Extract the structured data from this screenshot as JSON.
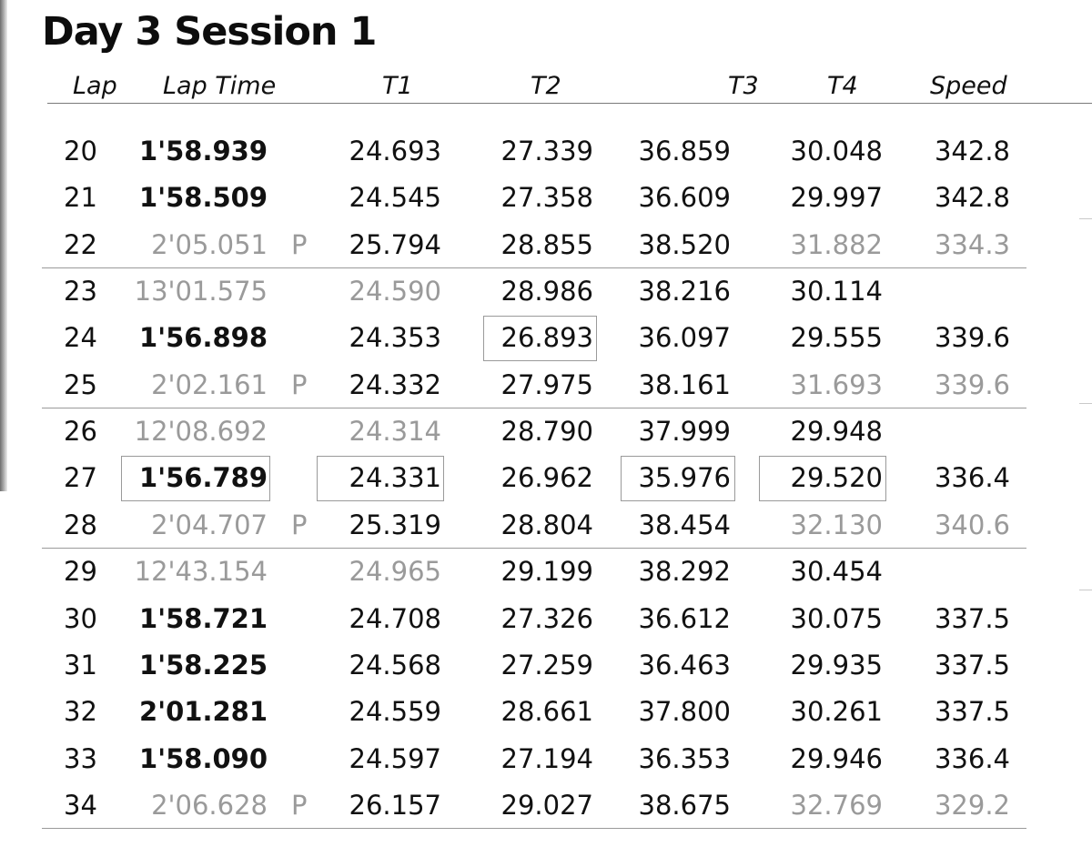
{
  "title": "Day 3 Session 1",
  "columns": {
    "lap": "Lap",
    "lap_time": "Lap Time",
    "t1": "T1",
    "t2": "T2",
    "t3": "T3",
    "t4": "T4",
    "speed": "Speed"
  },
  "rows": [
    {
      "lap": "20",
      "lap_time": "1'58.939",
      "pit": "",
      "t1": "24.693",
      "t2": "27.339",
      "t3": "36.859",
      "t4": "30.048",
      "speed": "342.8"
    },
    {
      "lap": "21",
      "lap_time": "1'58.509",
      "pit": "",
      "t1": "24.545",
      "t2": "27.358",
      "t3": "36.609",
      "t4": "29.997",
      "speed": "342.8"
    },
    {
      "lap": "22",
      "lap_time": "2'05.051",
      "pit": "P",
      "t1": "25.794",
      "t2": "28.855",
      "t3": "38.520",
      "t4": "31.882",
      "speed": "334.3"
    },
    {
      "lap": "23",
      "lap_time": "13'01.575",
      "pit": "",
      "t1": "24.590",
      "t2": "28.986",
      "t3": "38.216",
      "t4": "30.114",
      "speed": ""
    },
    {
      "lap": "24",
      "lap_time": "1'56.898",
      "pit": "",
      "t1": "24.353",
      "t2": "26.893",
      "t3": "36.097",
      "t4": "29.555",
      "speed": "339.6"
    },
    {
      "lap": "25",
      "lap_time": "2'02.161",
      "pit": "P",
      "t1": "24.332",
      "t2": "27.975",
      "t3": "38.161",
      "t4": "31.693",
      "speed": "339.6"
    },
    {
      "lap": "26",
      "lap_time": "12'08.692",
      "pit": "",
      "t1": "24.314",
      "t2": "28.790",
      "t3": "37.999",
      "t4": "29.948",
      "speed": ""
    },
    {
      "lap": "27",
      "lap_time": "1'56.789",
      "pit": "",
      "t1": "24.331",
      "t2": "26.962",
      "t3": "35.976",
      "t4": "29.520",
      "speed": "336.4"
    },
    {
      "lap": "28",
      "lap_time": "2'04.707",
      "pit": "P",
      "t1": "25.319",
      "t2": "28.804",
      "t3": "38.454",
      "t4": "32.130",
      "speed": "340.6"
    },
    {
      "lap": "29",
      "lap_time": "12'43.154",
      "pit": "",
      "t1": "24.965",
      "t2": "29.199",
      "t3": "38.292",
      "t4": "30.454",
      "speed": ""
    },
    {
      "lap": "30",
      "lap_time": "1'58.721",
      "pit": "",
      "t1": "24.708",
      "t2": "27.326",
      "t3": "36.612",
      "t4": "30.075",
      "speed": "337.5"
    },
    {
      "lap": "31",
      "lap_time": "1'58.225",
      "pit": "",
      "t1": "24.568",
      "t2": "27.259",
      "t3": "36.463",
      "t4": "29.935",
      "speed": "337.5"
    },
    {
      "lap": "32",
      "lap_time": "2'01.281",
      "pit": "",
      "t1": "24.559",
      "t2": "28.661",
      "t3": "37.800",
      "t4": "30.261",
      "speed": "337.5"
    },
    {
      "lap": "33",
      "lap_time": "1'58.090",
      "pit": "",
      "t1": "24.597",
      "t2": "27.194",
      "t3": "36.353",
      "t4": "29.946",
      "speed": "336.4"
    },
    {
      "lap": "34",
      "lap_time": "2'06.628",
      "pit": "P",
      "t1": "26.157",
      "t2": "29.027",
      "t3": "38.675",
      "t4": "32.769",
      "speed": "329.2"
    }
  ],
  "styles": {
    "bold_lap_time_rows": [
      0,
      1,
      4,
      7,
      10,
      11,
      12,
      13
    ],
    "dim_lap_time_rows": [
      2,
      3,
      5,
      6,
      8,
      9,
      14
    ],
    "dim_t1_rows": [
      3,
      6,
      9
    ],
    "dim_t4_rows": [
      2,
      5,
      8,
      14
    ],
    "dim_speed_rows": [
      2,
      5,
      8,
      14
    ],
    "boxed_cells": [
      {
        "row": 4,
        "column": "t2"
      },
      {
        "row": 7,
        "column": "lap_time"
      },
      {
        "row": 7,
        "column": "t1"
      },
      {
        "row": 7,
        "column": "t3"
      },
      {
        "row": 7,
        "column": "t4"
      }
    ],
    "group_separator_after_rows": [
      2,
      5,
      8,
      14
    ],
    "text_color": "#111111",
    "dim_color": "#9a9a9a"
  }
}
